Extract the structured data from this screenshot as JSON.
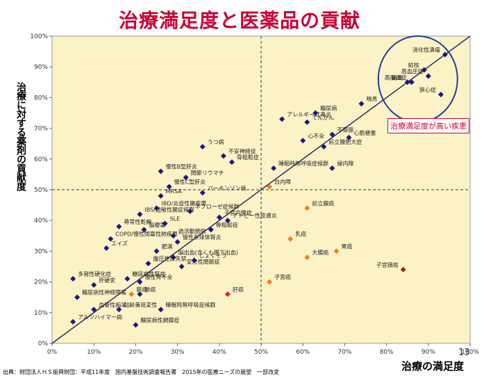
{
  "page": {
    "title": "治療満足度と医薬品の貢献",
    "y_axis_label": "治療に対する薬剤の貢献度",
    "x_axis_label": "治療の満足度",
    "source_note": "出典：財団法人ＨＳ振興財団：平成11年度　国内基盤技術調査報告書　2015年の医療ニーズの展望　一部改変",
    "page_number": "13",
    "callout": "治療満足度が高い疾患"
  },
  "colors": {
    "background": "#fbf3c6",
    "title": "#cc0033",
    "point_navy": "#1a1a80",
    "point_orange": "#f08020",
    "point_red": "#e02020",
    "point_brown": "#8b3a0a",
    "trend_line": "#2a2a66",
    "callout_border": "#cc0033",
    "circle": "#1e3a9e"
  },
  "chart_data": {
    "type": "scatter",
    "title": "治療満足度と医薬品の貢献",
    "xlabel": "治療の満足度",
    "ylabel": "治療に対する薬剤の貢献度",
    "xlim": [
      0,
      100
    ],
    "ylim": [
      0,
      100
    ],
    "x_ticks": [
      "0%",
      "10%",
      "20%",
      "30%",
      "40%",
      "50%",
      "60%",
      "70%",
      "80%",
      "90%",
      "100%"
    ],
    "y_ticks": [
      "0%",
      "10%",
      "20%",
      "30%",
      "40%",
      "50%",
      "60%",
      "70%",
      "80%",
      "90%",
      "100%"
    ],
    "reference_lines": {
      "x": 50,
      "y": 50
    },
    "grid": false,
    "points": [
      {
        "label": "消化性潰瘍",
        "x": 94,
        "y": 94,
        "color": "navy"
      },
      {
        "label": "結核",
        "x": 89,
        "y": 89,
        "color": "navy"
      },
      {
        "label": "高脂血症",
        "x": 86,
        "y": 85,
        "color": "navy"
      },
      {
        "label": "高血圧症",
        "x": 90,
        "y": 87,
        "color": "navy"
      },
      {
        "label": "痛風",
        "x": 85,
        "y": 85,
        "color": "navy"
      },
      {
        "label": "狭心症",
        "x": 93,
        "y": 81,
        "color": "navy"
      },
      {
        "label": "喘息",
        "x": 74,
        "y": 78,
        "color": "navy"
      },
      {
        "label": "糖尿病",
        "x": 63,
        "y": 75,
        "color": "navy"
      },
      {
        "label": "アレルギー性鼻炎",
        "x": 55,
        "y": 73,
        "color": "navy"
      },
      {
        "label": "てんかん",
        "x": 61,
        "y": 72,
        "color": "navy"
      },
      {
        "label": "不整脈",
        "x": 67,
        "y": 68,
        "color": "navy"
      },
      {
        "label": "心筋梗塞",
        "x": 71,
        "y": 67,
        "color": "navy"
      },
      {
        "label": "心不全",
        "x": 60,
        "y": 66,
        "color": "navy"
      },
      {
        "label": "前立腺肥大症",
        "x": 65,
        "y": 64,
        "color": "navy"
      },
      {
        "label": "うつ病",
        "x": 36,
        "y": 64,
        "color": "navy"
      },
      {
        "label": "不安神経症",
        "x": 41,
        "y": 61,
        "color": "navy"
      },
      {
        "label": "骨粗鬆症",
        "x": 43,
        "y": 59,
        "color": "navy"
      },
      {
        "label": "睡眠時無呼吸症候群",
        "x": 53,
        "y": 57,
        "color": "navy"
      },
      {
        "label": "緑内障",
        "x": 67,
        "y": 57,
        "color": "navy"
      },
      {
        "label": "慢性B型肝炎",
        "x": 26,
        "y": 56,
        "color": "navy"
      },
      {
        "label": "関節リウマチ",
        "x": 32,
        "y": 54,
        "color": "navy"
      },
      {
        "label": "白内障",
        "x": 52,
        "y": 51,
        "color": "orange"
      },
      {
        "label": "慢性C型肝炎",
        "x": 28,
        "y": 51,
        "color": "navy"
      },
      {
        "label": "パーキンソン病",
        "x": 36,
        "y": 49,
        "color": "navy"
      },
      {
        "label": "MRSA",
        "x": 26,
        "y": 48,
        "color": "navy"
      },
      {
        "label": "IBD/炎症性腸疾患",
        "x": 25,
        "y": 44,
        "color": "navy"
      },
      {
        "label": "IBS/過敏性腸症候群",
        "x": 21,
        "y": 42,
        "color": "navy"
      },
      {
        "label": "ネフローゼ症候群",
        "x": 33,
        "y": 43,
        "color": "navy"
      },
      {
        "label": "子宮内膜症",
        "x": 40,
        "y": 41,
        "color": "navy"
      },
      {
        "label": "アトピー性皮膚炎",
        "x": 42,
        "y": 40,
        "color": "navy"
      },
      {
        "label": "前立腺癌",
        "x": 61,
        "y": 44,
        "color": "orange"
      },
      {
        "label": "尋常性乾癬",
        "x": 16,
        "y": 38,
        "color": "navy"
      },
      {
        "label": "SLE",
        "x": 27,
        "y": 39,
        "color": "navy"
      },
      {
        "label": "脳梗塞",
        "x": 22,
        "y": 37,
        "color": "navy"
      },
      {
        "label": "骨粗鬆症",
        "x": 38,
        "y": 37,
        "color": "navy"
      },
      {
        "label": "COPD/慢性閉塞性肺疾患",
        "x": 14,
        "y": 34,
        "color": "navy"
      },
      {
        "label": "過活動膀胱",
        "x": 29,
        "y": 35,
        "color": "navy"
      },
      {
        "label": "慢性糸球体腎炎",
        "x": 30,
        "y": 33,
        "color": "navy"
      },
      {
        "label": "乳癌",
        "x": 57,
        "y": 34,
        "color": "orange"
      },
      {
        "label": "エイズ",
        "x": 13,
        "y": 31,
        "color": "navy"
      },
      {
        "label": "肥満",
        "x": 25,
        "y": 30,
        "color": "navy"
      },
      {
        "label": "脳出血(含くも膜下出血)",
        "x": 29,
        "y": 28,
        "color": "navy"
      },
      {
        "label": "じょくそう",
        "x": 34,
        "y": 27,
        "color": "navy"
      },
      {
        "label": "大腸癌",
        "x": 61,
        "y": 28,
        "color": "orange"
      },
      {
        "label": "胃癌",
        "x": 68,
        "y": 30,
        "color": "orange"
      },
      {
        "label": "腹圧性尿失禁",
        "x": 23,
        "y": 26,
        "color": "navy"
      },
      {
        "label": "多発性硬化症",
        "x": 5,
        "y": 21,
        "color": "navy"
      },
      {
        "label": "変形性関節症",
        "x": 31,
        "y": 25,
        "color": "navy"
      },
      {
        "label": "糖尿病性腎症",
        "x": 18,
        "y": 21,
        "color": "navy"
      },
      {
        "label": "慢性腎不全",
        "x": 21,
        "y": 20,
        "color": "navy"
      },
      {
        "label": "肝硬変",
        "x": 10,
        "y": 19,
        "color": "navy"
      },
      {
        "label": "子宮頸癌",
        "x": 84,
        "y": 24,
        "color": "brown"
      },
      {
        "label": "肺癌",
        "x": 21,
        "y": 16,
        "color": "navy"
      },
      {
        "label": "子宮癌",
        "x": 52,
        "y": 20,
        "color": "orange"
      },
      {
        "label": "糖尿病性神経障害",
        "x": 6,
        "y": 15,
        "color": "navy"
      },
      {
        "label": "肝癌",
        "x": 42,
        "y": 16,
        "color": "red"
      },
      {
        "label": "膵癌",
        "x": 19,
        "y": 16,
        "color": "orange"
      },
      {
        "label": "血管性痴呆",
        "x": 10,
        "y": 11,
        "color": "navy"
      },
      {
        "label": "加齢黄斑変性",
        "x": 16,
        "y": 11,
        "color": "navy"
      },
      {
        "label": "睡眠時無呼吸症候群",
        "x": 26,
        "y": 11,
        "color": "navy"
      },
      {
        "label": "アルツハイマー病",
        "x": 5,
        "y": 7,
        "color": "navy"
      },
      {
        "label": "糖尿病性網膜症",
        "x": 20,
        "y": 6,
        "color": "navy"
      }
    ],
    "trend_line": {
      "from": [
        0,
        0
      ],
      "to": [
        100,
        100
      ]
    }
  }
}
